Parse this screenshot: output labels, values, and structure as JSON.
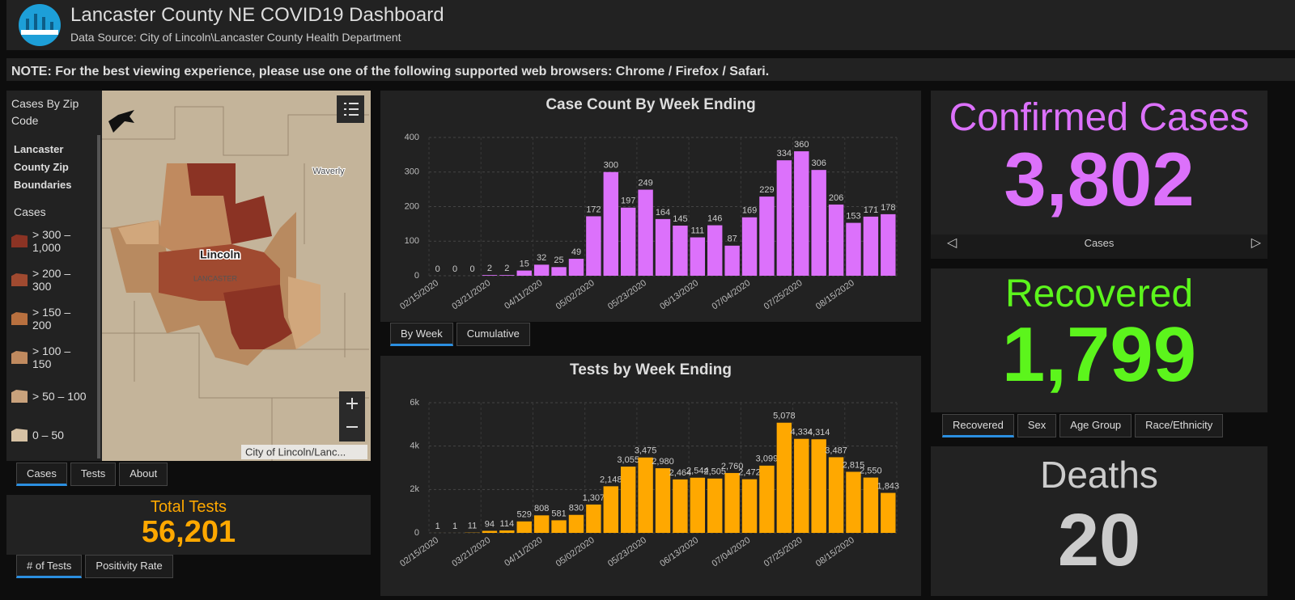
{
  "header": {
    "title": "Lancaster County NE COVID19 Dashboard",
    "subtitle": "Data Source: City of Lincoln\\Lancaster County Health Department"
  },
  "note": "NOTE: For the best viewing experience, please use one of the following supported web browsers: Chrome / Firefox / Safari.",
  "map": {
    "title": "Cases By Zip Code",
    "layer": "Lancaster County Zip Boundaries",
    "legend_title": "Cases",
    "legend": [
      "> 300 – 1,000",
      "> 200 – 300",
      "> 150 – 200",
      "> 100 – 150",
      "> 50 – 100",
      "0 – 50"
    ],
    "places": [
      "Lincoln",
      "LANCASTER",
      "Waverly"
    ],
    "attribution": "City of Lincoln/Lanc...",
    "tabs": [
      "Cases",
      "Tests",
      "About"
    ]
  },
  "total_tests": {
    "title": "Total Tests",
    "value": "56,201",
    "tabs": [
      "# of Tests",
      "Positivity Rate"
    ]
  },
  "case_tabs": [
    "By Week",
    "Cumulative"
  ],
  "chart_data": [
    {
      "type": "bar",
      "title": "Case Count By Week Ending",
      "color": "#dc71fb",
      "categories": [
        "02/15/2020",
        null,
        null,
        "03/21/2020",
        null,
        null,
        "04/11/2020",
        null,
        null,
        "05/02/2020",
        null,
        null,
        "05/23/2020",
        null,
        null,
        "06/13/2020",
        null,
        null,
        "07/04/2020",
        null,
        null,
        "07/25/2020",
        null,
        null,
        "08/15/2020",
        null,
        null
      ],
      "values": [
        0,
        0,
        0,
        2,
        2,
        15,
        32,
        25,
        49,
        172,
        300,
        197,
        249,
        164,
        145,
        111,
        146,
        87,
        169,
        229,
        334,
        360,
        306,
        206,
        153,
        171,
        178
      ],
      "ylim": [
        0,
        400
      ],
      "yticks": [
        0,
        100,
        200,
        300,
        400
      ],
      "grid": true
    },
    {
      "type": "bar",
      "title": "Tests by Week Ending",
      "color": "#ffa800",
      "categories": [
        "02/15/2020",
        null,
        null,
        "03/21/2020",
        null,
        null,
        "04/11/2020",
        null,
        null,
        "05/02/2020",
        null,
        null,
        "05/23/2020",
        null,
        null,
        "06/13/2020",
        null,
        null,
        "07/04/2020",
        null,
        null,
        "07/25/2020",
        null,
        null,
        "08/15/2020",
        null,
        null
      ],
      "values": [
        1,
        1,
        11,
        94,
        114,
        529,
        808,
        581,
        830,
        1307,
        2148,
        3055,
        3475,
        2980,
        2464,
        2544,
        2505,
        2760,
        2472,
        3099,
        5078,
        4334,
        4314,
        3487,
        2815,
        2550,
        1843
      ],
      "value_labels": [
        "1",
        "1",
        "11",
        "94",
        "114",
        "529",
        "808",
        "581",
        "830",
        "1,307",
        "2,148",
        "3,055",
        "3,475",
        "2,980",
        "2,464",
        "2,544",
        "2,505",
        "2,760",
        "2,472",
        "3,099",
        "5,078",
        "4,334",
        "4,314",
        "3,487",
        "2,815",
        "2,550",
        "1,843"
      ],
      "ylim": [
        0,
        6000
      ],
      "yticks": [
        0,
        {
          "value": 2000,
          "label": "2k"
        },
        {
          "value": 4000,
          "label": "4k"
        },
        {
          "value": 6000,
          "label": "6k"
        }
      ],
      "grid": true
    }
  ],
  "confirmed": {
    "title": "Confirmed Cases",
    "value": "3,802",
    "caption": "Cases"
  },
  "recovered": {
    "title": "Recovered",
    "value": "1,799",
    "tabs": [
      "Recovered",
      "Sex",
      "Age Group",
      "Race/Ethnicity"
    ]
  },
  "deaths": {
    "title": "Deaths",
    "value": "20"
  }
}
